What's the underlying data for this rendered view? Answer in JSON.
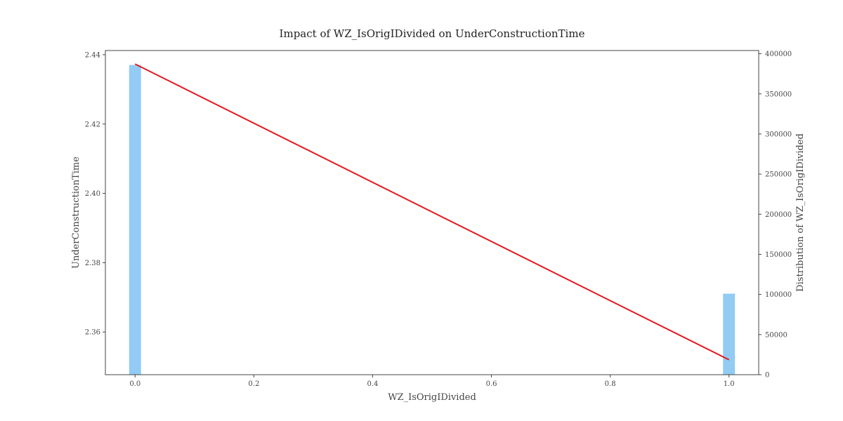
{
  "chart_data": {
    "type": "bar+line",
    "title": "Impact of WZ_IsOrigIDivided on UnderConstructionTime",
    "xlabel": "WZ_IsOrigIDivided",
    "ylabel": "UnderConstructionTime",
    "y2label": "Distribution of WZ_IsOrigIDivided",
    "xlim": [
      -0.05,
      1.05
    ],
    "ylim": [
      2.3477,
      2.4412
    ],
    "y2lim": [
      0,
      404000
    ],
    "xticks": [
      "0.0",
      "0.2",
      "0.4",
      "0.6",
      "0.8",
      "1.0"
    ],
    "yticks": [
      "2.36",
      "2.38",
      "2.40",
      "2.42",
      "2.44"
    ],
    "y2ticks": [
      "0",
      "50000",
      "100000",
      "150000",
      "200000",
      "250000",
      "300000",
      "350000",
      "400000"
    ],
    "grid": false,
    "line_series": {
      "x": [
        0.0,
        1.0
      ],
      "y": [
        2.4373,
        2.352
      ],
      "color": "#e41a1c"
    },
    "bar_series": {
      "x": [
        0.0,
        1.0
      ],
      "values": [
        386000,
        101000
      ],
      "bar_width": 0.02,
      "color": "#92cbf4"
    }
  }
}
